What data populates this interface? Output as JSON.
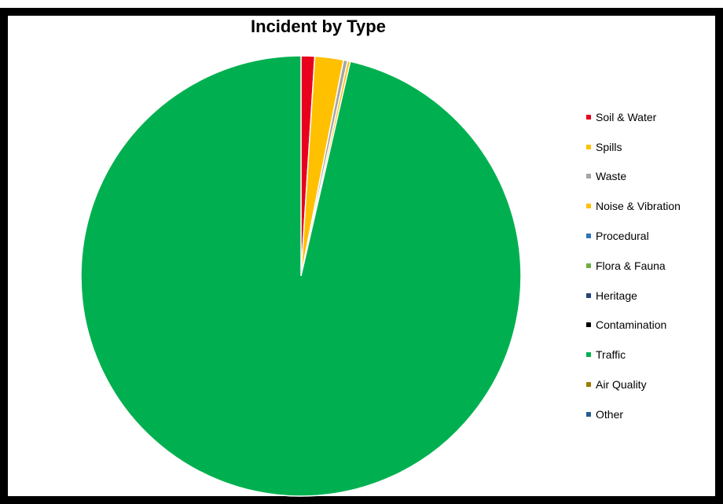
{
  "chart_data": {
    "type": "pie",
    "title": "Incident by Type",
    "legend_position": "right",
    "start_angle": "top, clockwise",
    "slices": [
      {
        "label": "Soil & Water",
        "value": 1.0,
        "color": "#e8001c"
      },
      {
        "label": "Spills",
        "value": 2.1,
        "color": "#ffc000"
      },
      {
        "label": "Waste",
        "value": 0.3,
        "color": "#a5a5a5"
      },
      {
        "label": "Noise & Vibration",
        "value": 0.2,
        "color": "#ffc000"
      },
      {
        "label": "Procedural",
        "value": 0,
        "color": "#2e75b6"
      },
      {
        "label": "Flora & Fauna",
        "value": 0,
        "color": "#70ad47"
      },
      {
        "label": "Heritage",
        "value": 0,
        "color": "#264478"
      },
      {
        "label": "Contamination",
        "value": 0,
        "color": "#000000"
      },
      {
        "label": "Traffic",
        "value": 96.4,
        "color": "#00b050"
      },
      {
        "label": "Air Quality",
        "value": 0,
        "color": "#9e7a00"
      },
      {
        "label": "Other",
        "value": 0,
        "color": "#255e91"
      }
    ]
  }
}
